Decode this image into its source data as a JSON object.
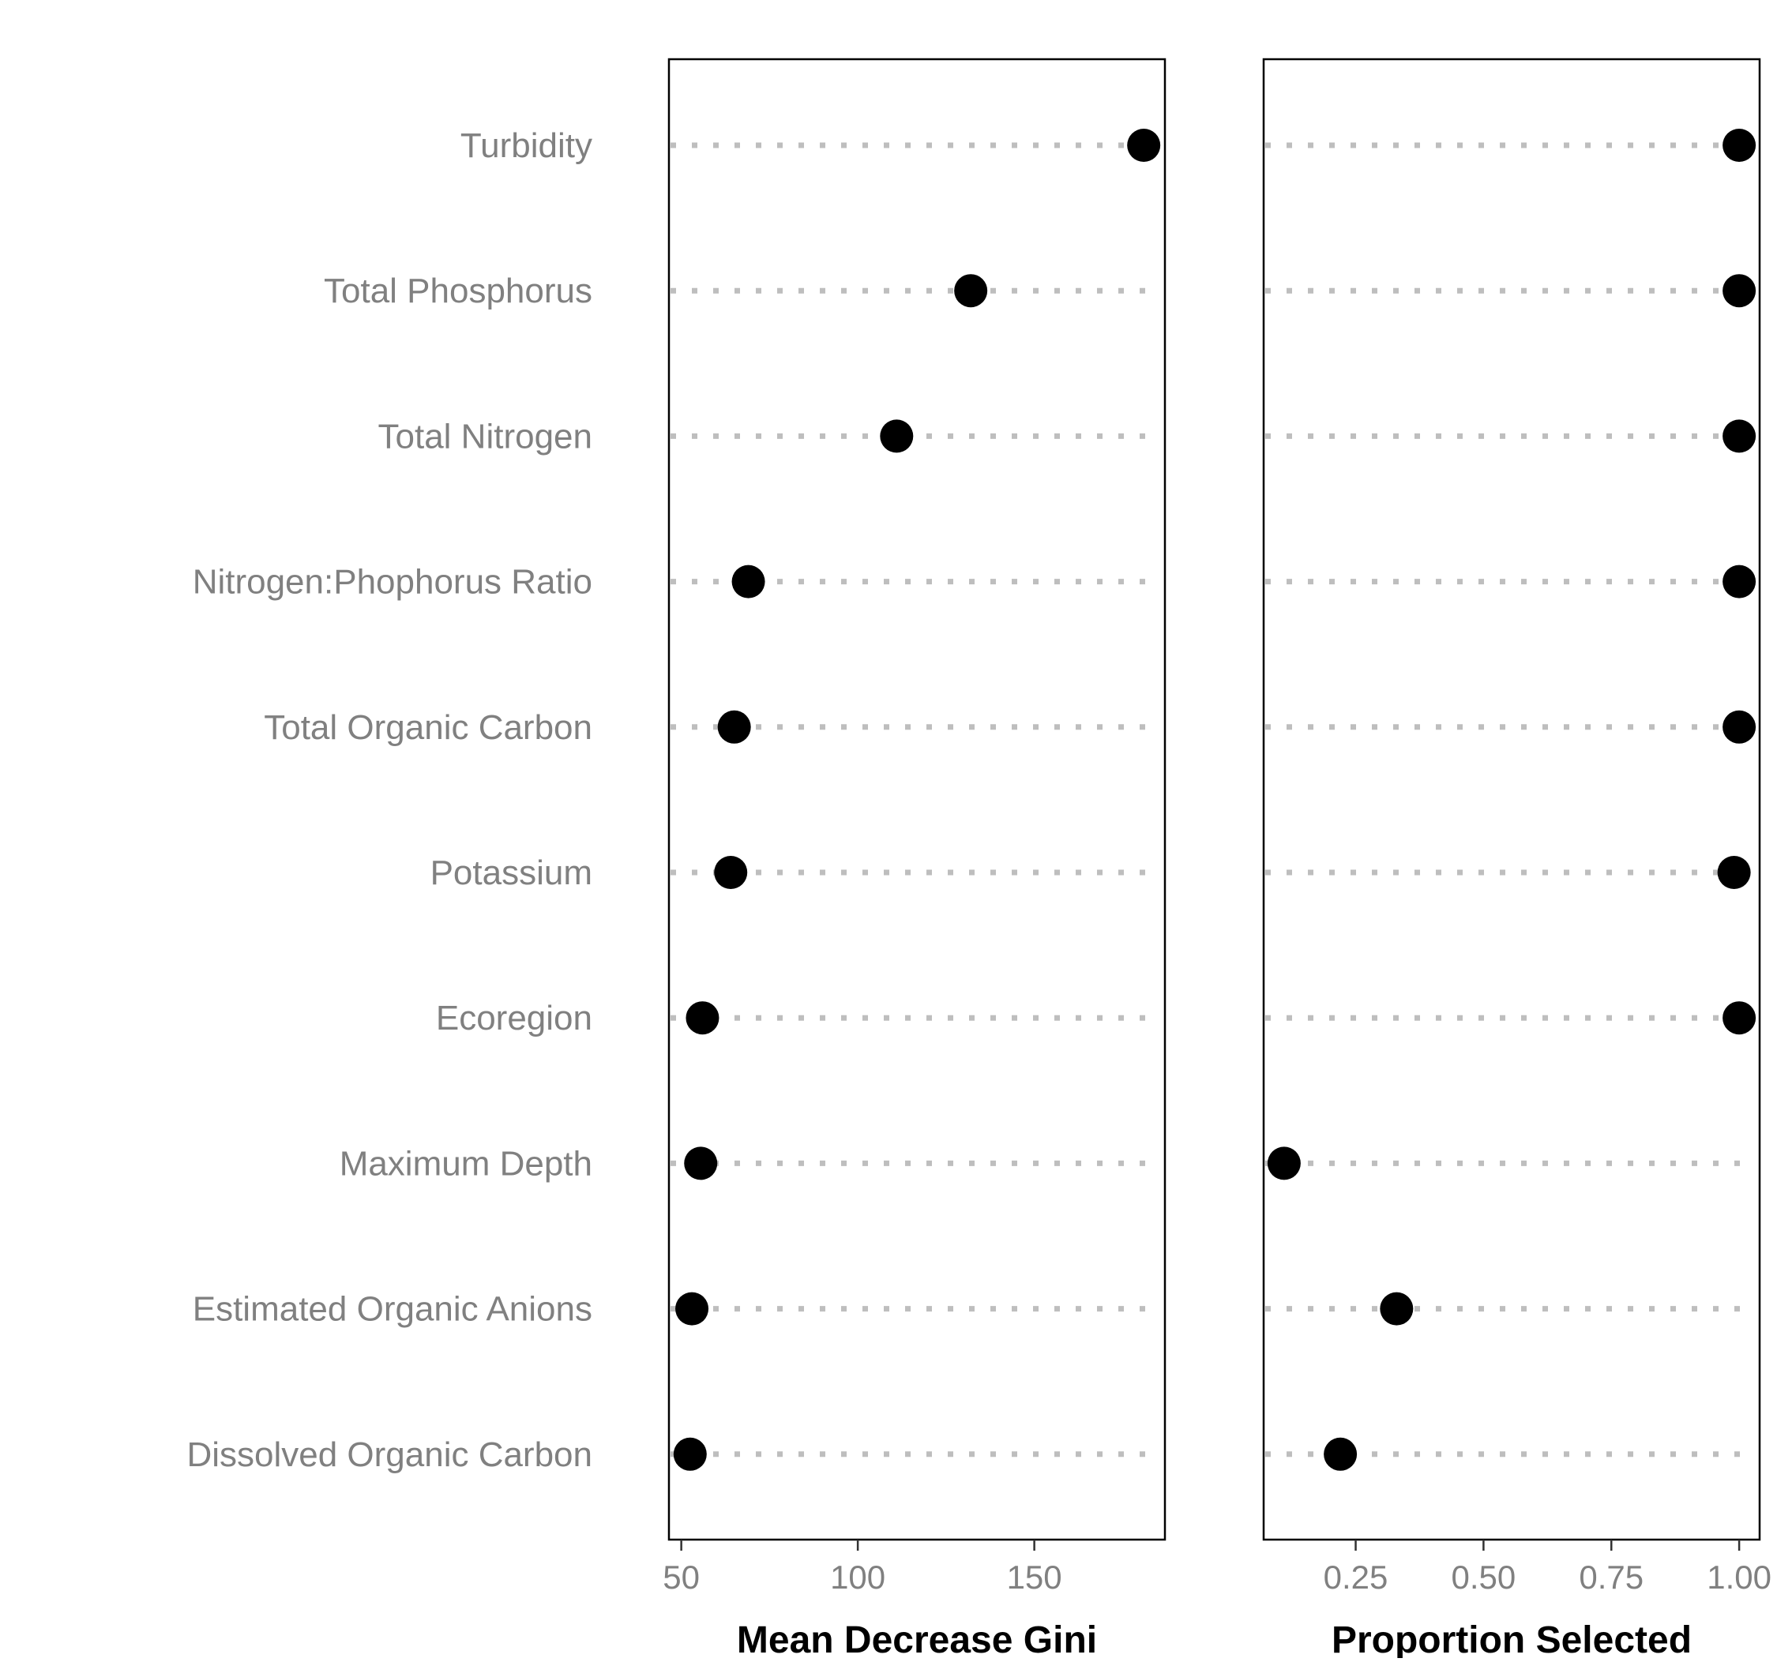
{
  "chart_data": [
    {
      "type": "scatter",
      "style": "dot-plot",
      "categories": [
        "Turbidity",
        "Total Phosphorus",
        "Total Nitrogen",
        "Nitrogen:Phophorus Ratio",
        "Total Organic Carbon",
        "Potassium",
        "Ecoregion",
        "Maximum Depth",
        "Estimated Organic Anions",
        "Dissolved Organic Carbon"
      ],
      "values": [
        181,
        132,
        111,
        69,
        65,
        64,
        56,
        55.5,
        53,
        52.5
      ],
      "xlabel": "Mean Decrease Gini",
      "xlim": [
        46.5,
        187
      ],
      "xticks": [
        50,
        100,
        150
      ],
      "xtick_labels": [
        "50",
        "100",
        "150"
      ],
      "grid": "dotted horizontal guide lines",
      "point_color": "#000000",
      "guide_color": "#BEBEBE"
    },
    {
      "type": "scatter",
      "style": "dot-plot",
      "categories": [
        "Turbidity",
        "Total Phosphorus",
        "Total Nitrogen",
        "Nitrogen:Phophorus Ratio",
        "Total Organic Carbon",
        "Potassium",
        "Ecoregion",
        "Maximum Depth",
        "Estimated Organic Anions",
        "Dissolved Organic Carbon"
      ],
      "values": [
        1.0,
        1.0,
        1.0,
        1.0,
        1.0,
        0.99,
        1.0,
        0.11,
        0.33,
        0.22
      ],
      "xlabel": "Proportion Selected",
      "xlim": [
        0.07,
        1.04
      ],
      "xticks": [
        0.25,
        0.5,
        0.75,
        1.0
      ],
      "xtick_labels": [
        "0.25",
        "0.50",
        "0.75",
        "1.00"
      ],
      "grid": "dotted horizontal guide lines",
      "point_color": "#000000",
      "guide_color": "#BEBEBE"
    }
  ]
}
